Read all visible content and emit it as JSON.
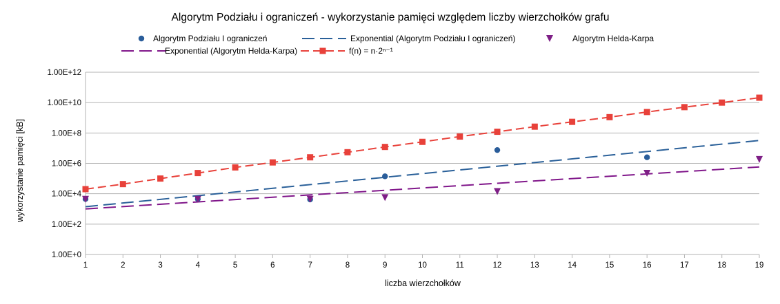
{
  "chart_data": {
    "type": "scatter",
    "title": "Algorytm Podziału i ograniczeń - wykorzystanie pamięci względem liczby wierzchołków grafu",
    "xlabel": "liczba wierzchołków",
    "ylabel": "wykorzystanie pamięci [kB]",
    "x_ticks": [
      1,
      2,
      3,
      4,
      5,
      6,
      7,
      8,
      9,
      10,
      11,
      12,
      13,
      14,
      15,
      16,
      17,
      18,
      19
    ],
    "xlim": [
      1,
      19
    ],
    "y_scale": "log10",
    "ylim": [
      1,
      1000000000000
    ],
    "y_ticks": [
      1,
      100,
      10000,
      1000000,
      100000000,
      10000000000,
      1000000000000
    ],
    "y_tick_labels": [
      "1.00E+0",
      "1.00E+2",
      "1.00E+4",
      "1.00E+6",
      "1.00E+8",
      "1.00E+10",
      "1.00E+12"
    ],
    "grid": "horizontal",
    "legend_position": "top",
    "series": [
      {
        "name": "Algorytm Podziału I ograniczeń",
        "kind": "points",
        "marker": "circle",
        "color": "#2a5d9a",
        "x": [
          1,
          4,
          7,
          9,
          12,
          16
        ],
        "y": [
          4500,
          4500,
          4200,
          140000,
          7500000,
          2500000
        ]
      },
      {
        "name": "Exponential (Algorytm Podziału I ograniczeń)",
        "kind": "trendline",
        "dash": "long",
        "color": "#2a6099",
        "x": [
          1,
          19
        ],
        "y": [
          1400,
          32000000
        ]
      },
      {
        "name": "Algorytm Helda-Karpa",
        "kind": "points",
        "marker": "triangle-down",
        "color": "#7e1f86",
        "x": [
          1,
          4,
          7,
          9,
          12,
          16,
          19
        ],
        "y": [
          4300,
          4300,
          4300,
          5500,
          14000,
          220000,
          1800000
        ]
      },
      {
        "name": "Exponential (Algorytm Helda-Karpa)",
        "kind": "trendline",
        "dash": "long",
        "color": "#80168a",
        "x": [
          1,
          19
        ],
        "y": [
          1000,
          580000
        ]
      },
      {
        "name": "f(n) = n·2ⁿ⁻¹",
        "kind": "line-points",
        "marker": "square",
        "dash": "medium",
        "color": "#e8413a",
        "x": [
          1,
          2,
          3,
          4,
          5,
          6,
          7,
          8,
          9,
          10,
          11,
          12,
          13,
          14,
          15,
          16,
          17,
          18,
          19
        ],
        "y": [
          20000,
          43000,
          100000,
          230000,
          540000,
          1150000,
          2500000,
          5400000,
          12000000,
          26000000,
          58000000,
          120000000,
          260000000,
          540000000,
          1100000000,
          2400000000,
          5000000000,
          10000000000,
          21000000000
        ]
      }
    ]
  }
}
